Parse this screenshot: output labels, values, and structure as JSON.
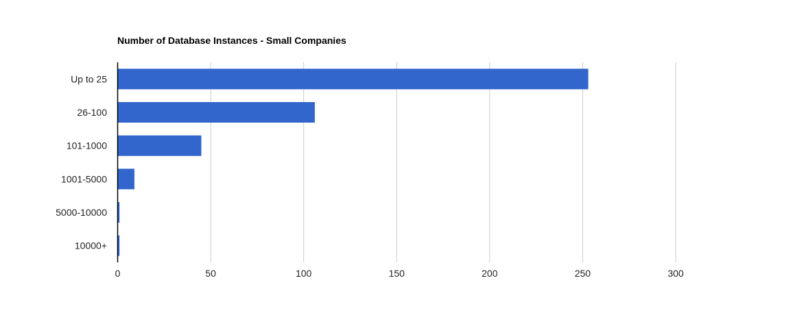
{
  "chart_data": {
    "type": "bar",
    "orientation": "horizontal",
    "title": "Number of Database Instances - Small Companies",
    "categories": [
      "Up to 25",
      "26-100",
      "101-1000",
      "1001-5000",
      "5000-10000",
      "10000+"
    ],
    "values": [
      253,
      106,
      45,
      9,
      1,
      1
    ],
    "xlabel": "",
    "ylabel": "",
    "xlim": [
      0,
      300
    ],
    "xticks": [
      0,
      50,
      100,
      150,
      200,
      250,
      300
    ],
    "grid": true,
    "legend": "none",
    "bar_color": "#3366cc"
  }
}
